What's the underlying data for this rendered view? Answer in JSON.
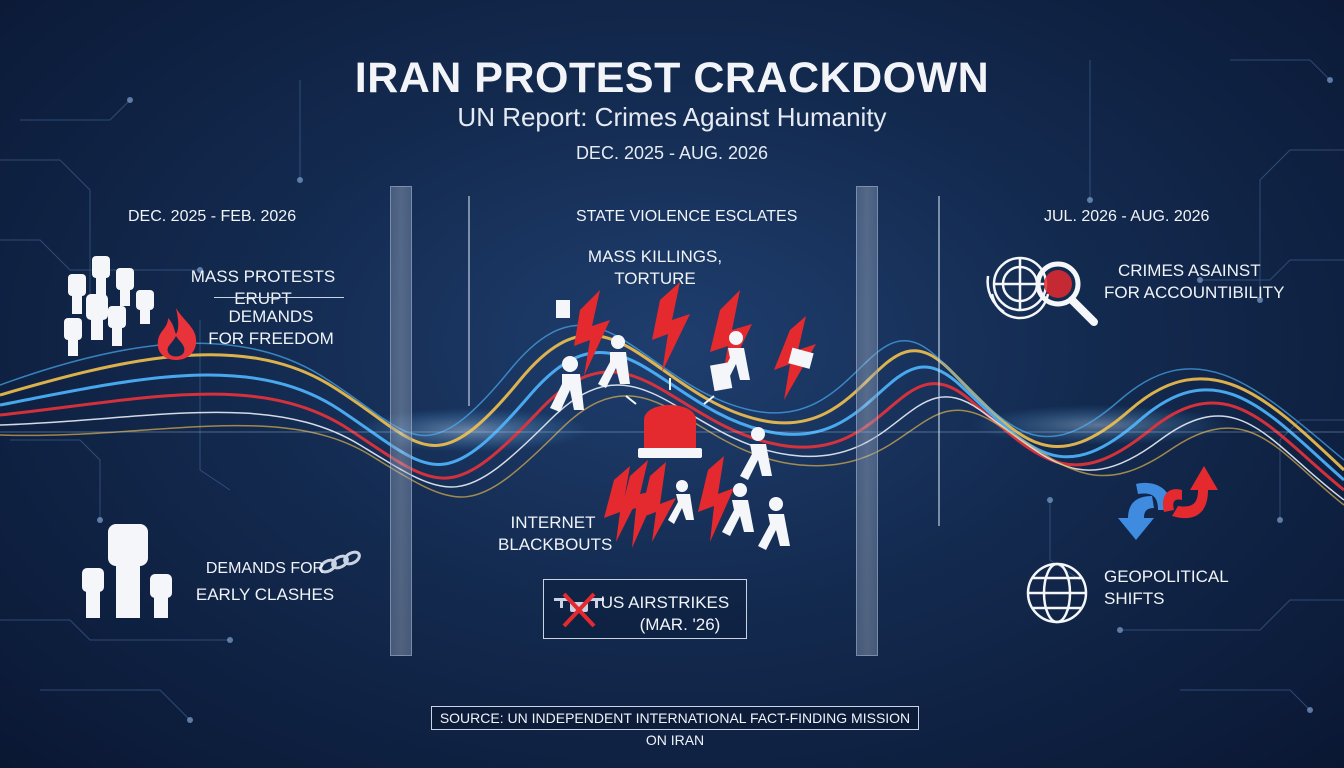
{
  "header": {
    "title": "IRAN PROTEST CRACKDOWN",
    "subtitle": "UN Report: Crimes Against Humanity",
    "date_range": "DEC. 2025 - AUG. 2026"
  },
  "left_phase": {
    "date": "DEC. 2025 - FEB. 2026",
    "item1": "MASS PROTESTS ERUPT",
    "item2_line1": "DEMANDS",
    "item2_line2": "FOR FREEDOM",
    "item3_line1": "DEMANDS FOR",
    "item3_line2": "EARLY CLASHES"
  },
  "middle_phase": {
    "heading": "STATE VIOLENCE ESCLATES",
    "item1_line1": "MASS KILLINGS,",
    "item1_line2": "TORTURE",
    "item2_line1": "INTERNET",
    "item2_line2": "BLACKBOUTS",
    "item3_line1": "US AIRSTRIKES",
    "item3_line2": "(MAR. '26)"
  },
  "right_phase": {
    "date": "JUL. 2026 - AUG. 2026",
    "item1_line1": "CRIMES ASAINST",
    "item1_line2": "FOR ACCOUNTIBILITY",
    "item2_line1": "GEOPOLITICAL",
    "item2_line2": "SHIFTS"
  },
  "footer": {
    "source": "SOURCE: UN INDEPENDENT INTERNATIONAL FACT-FINDING MISSION ON IRAN"
  },
  "colors": {
    "background": "#132a4f",
    "wave_red": "#e8333a",
    "wave_blue": "#4fb6ff",
    "wave_yellow": "#f2c14e",
    "alert_red": "#e42a2f"
  },
  "icons": [
    "raised-fists-icon",
    "flame-icon",
    "chain-icon",
    "lightning-bolt-icon",
    "alarm-siren-icon",
    "fleeing-figures-icon",
    "drone-crossed-icon",
    "un-emblem-icon",
    "magnifier-icon",
    "arrows-exchange-icon",
    "globe-icon"
  ]
}
